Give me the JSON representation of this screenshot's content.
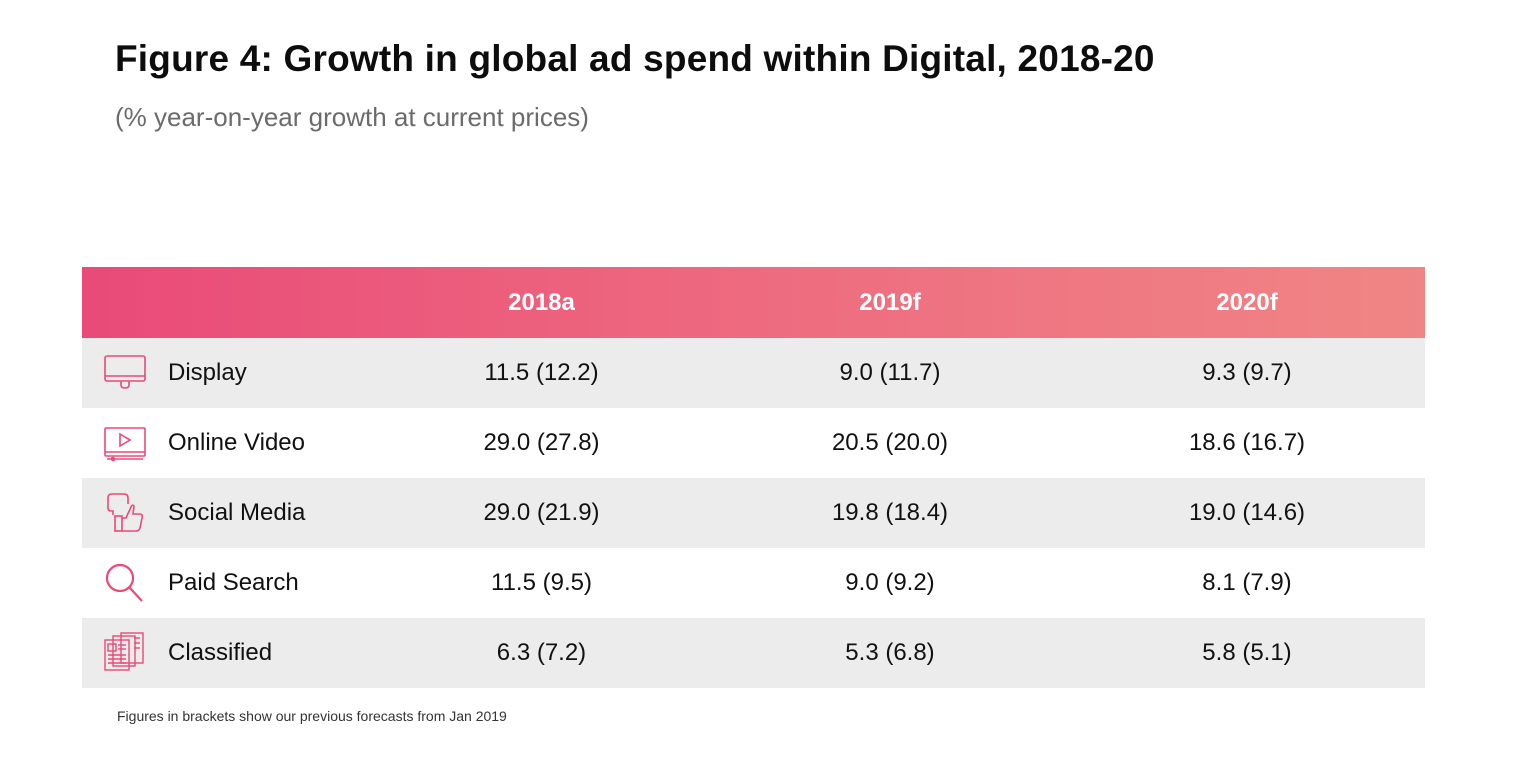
{
  "title": "Figure 4: Growth in global ad spend within Digital, 2018-20",
  "subtitle": "(% year-on-year growth at current prices)",
  "header": {
    "c1": "2018a",
    "c2": "2019f",
    "c3": "2020f"
  },
  "rows": [
    {
      "label": "Display",
      "icon": "monitor-icon",
      "v1": "11.5 (12.2)",
      "v2": "9.0 (11.7)",
      "v3": "9.3 (9.7)"
    },
    {
      "label": "Online Video",
      "icon": "video-player-icon",
      "v1": "29.0 (27.8)",
      "v2": "20.5 (20.0)",
      "v3": "18.6 (16.7)"
    },
    {
      "label": "Social Media",
      "icon": "thumbs-up-icon",
      "v1": "29.0 (21.9)",
      "v2": "19.8 (18.4)",
      "v3": "19.0 (14.6)"
    },
    {
      "label": "Paid Search",
      "icon": "search-icon",
      "v1": "11.5 (9.5)",
      "v2": "9.0 (9.2)",
      "v3": "8.1 (7.9)"
    },
    {
      "label": "Classified",
      "icon": "newspaper-icon",
      "v1": "6.3 (7.2)",
      "v2": "5.3 (6.8)",
      "v3": "5.8 (5.1)"
    }
  ],
  "note": "Figures in brackets show our previous forecasts from Jan 2019",
  "colors": {
    "accent": "#e94a78",
    "accent_end": "#f08585",
    "row_shade": "#ececec"
  },
  "chart_data": {
    "type": "table",
    "title": "Figure 4: Growth in global ad spend within Digital, 2018-20",
    "subtitle": "(% year-on-year growth at current prices)",
    "columns": [
      "2018a",
      "2019f",
      "2020f"
    ],
    "series": [
      {
        "name": "Display",
        "values": [
          11.5,
          9.0,
          9.3
        ],
        "previous_forecast": [
          12.2,
          11.7,
          9.7
        ]
      },
      {
        "name": "Online Video",
        "values": [
          29.0,
          20.5,
          18.6
        ],
        "previous_forecast": [
          27.8,
          20.0,
          16.7
        ]
      },
      {
        "name": "Social Media",
        "values": [
          29.0,
          19.8,
          19.0
        ],
        "previous_forecast": [
          21.9,
          18.4,
          14.6
        ]
      },
      {
        "name": "Paid Search",
        "values": [
          11.5,
          9.0,
          8.1
        ],
        "previous_forecast": [
          9.5,
          9.2,
          7.9
        ]
      },
      {
        "name": "Classified",
        "values": [
          6.3,
          5.3,
          5.8
        ],
        "previous_forecast": [
          7.2,
          6.8,
          5.1
        ]
      }
    ]
  }
}
